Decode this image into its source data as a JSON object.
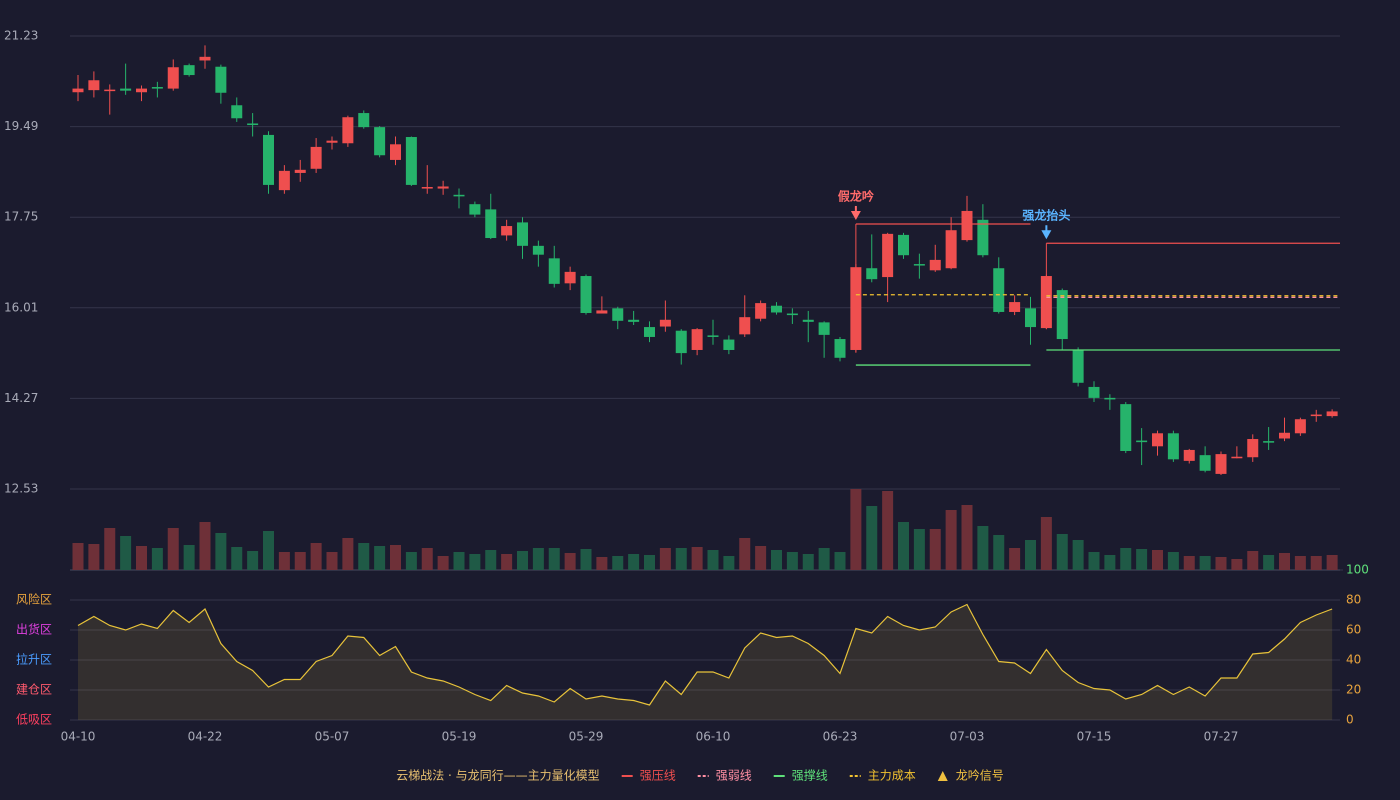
{
  "chart_data": {
    "type": "candlestick",
    "title": "云梯战法 · 与龙同行——主力量化模型",
    "title_color": "#e8c070",
    "categories": [
      "04-10",
      null,
      null,
      null,
      null,
      null,
      null,
      null,
      "04-22",
      null,
      null,
      null,
      null,
      null,
      null,
      null,
      "05-07",
      null,
      null,
      null,
      null,
      null,
      null,
      null,
      "05-19",
      null,
      null,
      null,
      null,
      null,
      null,
      null,
      "05-29",
      null,
      null,
      null,
      null,
      null,
      null,
      null,
      "06-10",
      null,
      null,
      null,
      null,
      null,
      null,
      null,
      "06-23",
      null,
      null,
      null,
      null,
      null,
      null,
      null,
      "07-03",
      null,
      null,
      null,
      null,
      null,
      null,
      null,
      "07-15",
      null,
      null,
      null,
      null,
      null,
      null,
      null,
      "07-27",
      null,
      null,
      null,
      null,
      null,
      null,
      null
    ],
    "open": [
      20.15,
      20.19,
      20.18,
      20.22,
      20.15,
      20.25,
      20.22,
      20.67,
      20.76,
      20.64,
      19.9,
      19.55,
      19.33,
      18.27,
      18.6,
      18.68,
      19.18,
      19.17,
      19.75,
      19.48,
      18.85,
      19.29,
      18.3,
      18.3,
      18.18,
      18.0,
      17.9,
      17.4,
      17.65,
      17.2,
      16.96,
      16.48,
      16.62,
      15.9,
      16.0,
      15.78,
      15.64,
      15.65,
      15.57,
      15.2,
      15.48,
      15.4,
      15.5,
      15.8,
      16.05,
      15.9,
      15.78,
      15.73,
      15.41,
      15.2,
      16.77,
      16.6,
      17.41,
      16.85,
      16.73,
      16.77,
      17.31,
      17.7,
      16.77,
      15.93,
      16.0,
      15.62,
      16.35,
      15.2,
      14.49,
      14.28,
      14.16,
      13.46,
      13.35,
      13.6,
      13.07,
      13.18,
      12.82,
      13.12,
      13.14,
      13.45,
      13.5,
      13.6,
      13.93,
      13.93
    ],
    "high": [
      20.48,
      20.55,
      20.3,
      20.7,
      20.28,
      20.35,
      20.78,
      20.7,
      21.05,
      20.68,
      20.05,
      19.75,
      19.4,
      18.75,
      18.85,
      19.27,
      19.3,
      19.7,
      19.8,
      19.5,
      19.3,
      19.3,
      18.75,
      18.45,
      18.3,
      18.05,
      18.2,
      17.7,
      17.75,
      17.3,
      17.2,
      16.8,
      16.65,
      16.23,
      16.03,
      15.95,
      15.75,
      16.15,
      15.6,
      15.62,
      15.78,
      15.48,
      16.25,
      16.15,
      16.12,
      16.0,
      15.95,
      15.75,
      15.45,
      16.85,
      17.42,
      17.45,
      17.45,
      17.05,
      17.22,
      17.75,
      18.16,
      18.0,
      16.98,
      16.25,
      16.22,
      16.65,
      16.38,
      15.25,
      14.6,
      14.35,
      14.2,
      13.7,
      13.65,
      13.65,
      13.3,
      13.35,
      13.25,
      13.35,
      13.58,
      13.72,
      13.9,
      13.9,
      14.05,
      14.06
    ],
    "low": [
      19.98,
      20.05,
      19.72,
      20.1,
      19.98,
      20.05,
      20.18,
      20.45,
      20.6,
      19.93,
      19.58,
      19.3,
      18.2,
      18.2,
      18.43,
      18.6,
      19.05,
      19.1,
      19.45,
      18.9,
      18.75,
      18.35,
      18.2,
      18.18,
      17.92,
      17.75,
      17.33,
      17.3,
      16.95,
      16.8,
      16.4,
      16.35,
      15.88,
      15.9,
      15.6,
      15.68,
      15.35,
      15.55,
      14.92,
      15.1,
      15.3,
      15.12,
      15.45,
      15.75,
      15.88,
      15.7,
      15.35,
      15.05,
      14.98,
      15.15,
      16.5,
      16.12,
      16.95,
      16.57,
      16.7,
      16.75,
      17.28,
      16.98,
      15.9,
      15.87,
      15.3,
      15.6,
      15.2,
      14.5,
      14.2,
      14.05,
      13.22,
      12.99,
      13.17,
      13.05,
      13.02,
      12.85,
      12.8,
      13.12,
      13.05,
      13.28,
      13.45,
      13.55,
      13.82,
      13.9
    ],
    "close": [
      20.22,
      20.38,
      20.2,
      20.18,
      20.22,
      20.22,
      20.63,
      20.48,
      20.83,
      20.14,
      19.65,
      19.52,
      18.37,
      18.64,
      18.66,
      19.1,
      19.22,
      19.67,
      19.48,
      18.94,
      19.15,
      18.37,
      18.33,
      18.34,
      18.15,
      17.8,
      17.35,
      17.58,
      17.2,
      17.03,
      16.47,
      16.7,
      15.91,
      15.96,
      15.76,
      15.74,
      15.45,
      15.78,
      15.14,
      15.6,
      15.45,
      15.2,
      15.83,
      16.1,
      15.92,
      15.87,
      15.74,
      15.49,
      15.05,
      16.79,
      16.56,
      17.43,
      17.02,
      16.83,
      16.93,
      17.5,
      17.87,
      17.02,
      15.93,
      16.12,
      15.64,
      16.62,
      15.41,
      14.57,
      14.28,
      14.25,
      13.26,
      13.43,
      13.6,
      13.1,
      13.28,
      12.88,
      13.2,
      13.15,
      13.49,
      13.42,
      13.61,
      13.87,
      13.96,
      14.02
    ],
    "up_color": "#ef4f4f",
    "down_color": "#26b36b",
    "ylim": [
      12.53,
      21.23
    ],
    "yticks": [
      12.53,
      14.27,
      16.01,
      17.75,
      19.49,
      21.23
    ],
    "grid": true,
    "volume": {
      "values": [
        27,
        26,
        42,
        34,
        24,
        22,
        42,
        25,
        48,
        37,
        23,
        19,
        39,
        18,
        18,
        27,
        18,
        32,
        27,
        24,
        25,
        18,
        22,
        14,
        18,
        16,
        20,
        16,
        19,
        22,
        22,
        17,
        21,
        13,
        14,
        16,
        15,
        22,
        22,
        23,
        20,
        14,
        32,
        24,
        20,
        18,
        16,
        22,
        18,
        81,
        64,
        79,
        48,
        41,
        41,
        60,
        65,
        44,
        35,
        22,
        30,
        53,
        36,
        30,
        18,
        15,
        22,
        21,
        20,
        18,
        14,
        14,
        13,
        11,
        19,
        15,
        17,
        14,
        14,
        15
      ],
      "ylim": [
        0,
        81
      ],
      "up_color": "#6e3038",
      "down_color": "#1f5a46"
    },
    "levels": [
      {
        "name": "强压线",
        "color": "#ef4f4f",
        "dash": false,
        "values": [
          null,
          null,
          null,
          null,
          null,
          null,
          null,
          null,
          null,
          null,
          null,
          null,
          null,
          null,
          null,
          null,
          null,
          null,
          null,
          null,
          null,
          null,
          null,
          null,
          null,
          null,
          null,
          null,
          null,
          null,
          null,
          null,
          null,
          null,
          null,
          null,
          null,
          null,
          null,
          null,
          null,
          null,
          null,
          null,
          null,
          null,
          null,
          null,
          null,
          17.62,
          17.62,
          17.62,
          17.62,
          17.62,
          17.62,
          17.62,
          17.62,
          17.62,
          17.62,
          17.62,
          17.62,
          17.25,
          17.25,
          17.25,
          17.25,
          17.25,
          17.25,
          17.25,
          17.25,
          17.25,
          17.25,
          17.25,
          17.25,
          17.25,
          17.25,
          17.25,
          17.25,
          17.25,
          17.25,
          17.25
        ]
      },
      {
        "name": "强弱线",
        "color": "#ff8fa3",
        "dash": true,
        "values": [
          null,
          null,
          null,
          null,
          null,
          null,
          null,
          null,
          null,
          null,
          null,
          null,
          null,
          null,
          null,
          null,
          null,
          null,
          null,
          null,
          null,
          null,
          null,
          null,
          null,
          null,
          null,
          null,
          null,
          null,
          null,
          null,
          null,
          null,
          null,
          null,
          null,
          null,
          null,
          null,
          null,
          null,
          null,
          null,
          null,
          null,
          null,
          null,
          null,
          null,
          null,
          null,
          null,
          null,
          null,
          null,
          null,
          null,
          null,
          null,
          null,
          16.21,
          16.21,
          16.21,
          16.21,
          16.21,
          16.21,
          16.21,
          16.21,
          16.21,
          16.21,
          16.21,
          16.21,
          16.21,
          16.21,
          16.21,
          16.21,
          16.21,
          16.21,
          16.21
        ]
      },
      {
        "name": "强撑线",
        "color": "#5ee07a",
        "dash": false,
        "values": [
          null,
          null,
          null,
          null,
          null,
          null,
          null,
          null,
          null,
          null,
          null,
          null,
          null,
          null,
          null,
          null,
          null,
          null,
          null,
          null,
          null,
          null,
          null,
          null,
          null,
          null,
          null,
          null,
          null,
          null,
          null,
          null,
          null,
          null,
          null,
          null,
          null,
          null,
          null,
          null,
          null,
          null,
          null,
          null,
          null,
          null,
          null,
          null,
          null,
          14.91,
          14.91,
          14.91,
          14.91,
          14.91,
          14.91,
          14.91,
          14.91,
          14.91,
          14.91,
          14.91,
          14.91,
          15.2,
          15.2,
          15.2,
          15.2,
          15.2,
          15.2,
          15.2,
          15.2,
          15.2,
          15.2,
          15.2,
          15.2,
          15.2,
          15.2,
          15.2,
          15.2,
          15.2,
          15.2,
          15.2
        ]
      },
      {
        "name": "主力成本",
        "color": "#f2c230",
        "dash": true,
        "values": [
          null,
          null,
          null,
          null,
          null,
          null,
          null,
          null,
          null,
          null,
          null,
          null,
          null,
          null,
          null,
          null,
          null,
          null,
          null,
          null,
          null,
          null,
          null,
          null,
          null,
          null,
          null,
          null,
          null,
          null,
          null,
          null,
          null,
          null,
          null,
          null,
          null,
          null,
          null,
          null,
          null,
          null,
          null,
          null,
          null,
          null,
          null,
          null,
          null,
          16.26,
          16.26,
          16.26,
          16.26,
          16.26,
          16.26,
          16.26,
          16.26,
          16.26,
          16.26,
          16.26,
          16.26,
          16.24,
          16.24,
          16.24,
          16.24,
          16.24,
          16.24,
          16.24,
          16.24,
          16.24,
          16.24,
          16.24,
          16.24,
          16.24,
          16.24,
          16.24,
          16.24,
          16.24,
          16.24,
          16.24
        ]
      }
    ],
    "signals": {
      "name": "龙吟信号",
      "color": "#f0c040",
      "items": [
        {
          "index": 49,
          "label": "假龙吟",
          "color": "#ff6b6b"
        },
        {
          "index": 61,
          "label": "强龙抬头",
          "color": "#5ab4ff"
        }
      ]
    },
    "indicator": {
      "values": [
        63,
        69,
        63,
        60,
        64,
        61,
        73,
        65,
        74,
        51,
        39,
        33,
        22,
        27,
        27,
        39,
        43,
        56,
        55,
        43,
        49,
        32,
        28,
        26,
        22,
        17,
        13,
        23,
        18,
        16,
        12,
        21,
        14,
        16,
        14,
        13,
        10,
        26,
        17,
        32,
        32,
        28,
        48,
        58,
        55,
        56,
        51,
        43,
        31,
        61,
        58,
        69,
        63,
        60,
        62,
        72,
        77,
        57,
        39,
        38,
        31,
        47,
        33,
        25,
        21,
        20,
        14,
        17,
        23,
        17,
        22,
        16,
        28,
        28,
        44,
        45,
        54,
        65,
        70,
        74
      ],
      "color": "#e8c33a",
      "ylim": [
        0,
        100
      ],
      "yticks": [
        0,
        20,
        40,
        60,
        80,
        100
      ],
      "tick_colors": [
        "#e8a33d",
        "#e8a33d",
        "#e8a33d",
        "#e8a33d",
        "#e8a33d",
        "#5ee07a"
      ],
      "zones": [
        {
          "label": "风险区",
          "color": "#e8a33d"
        },
        {
          "label": "出货区",
          "color": "#e040e0"
        },
        {
          "label": "拉升区",
          "color": "#4a9cff"
        },
        {
          "label": "建仓区",
          "color": "#ff5a6e"
        },
        {
          "label": "低吸区",
          "color": "#ff4060"
        }
      ]
    }
  }
}
